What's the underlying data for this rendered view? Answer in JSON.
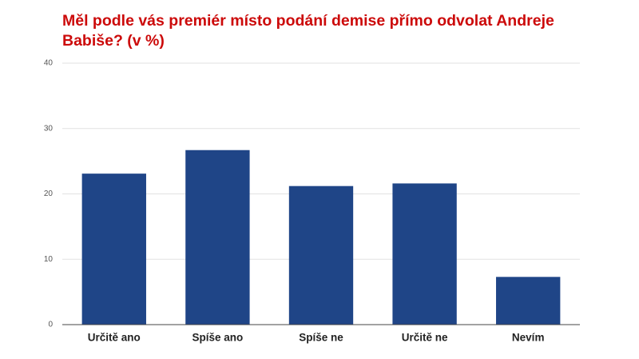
{
  "chart_data": {
    "type": "bar",
    "title": "Měl podle vás premiér místo podání demise přímo odvolat Andreje Babiše? (v %)",
    "categories": [
      "Určitě ano",
      "Spíše ano",
      "Spíše ne",
      "Určitě ne",
      "Nevím"
    ],
    "values": [
      23.1,
      26.7,
      21.2,
      21.6,
      7.3
    ],
    "color": "#1f4587",
    "ylim": [
      0,
      40
    ],
    "yticks": [
      0,
      10,
      20,
      30,
      40
    ],
    "grid": true
  }
}
